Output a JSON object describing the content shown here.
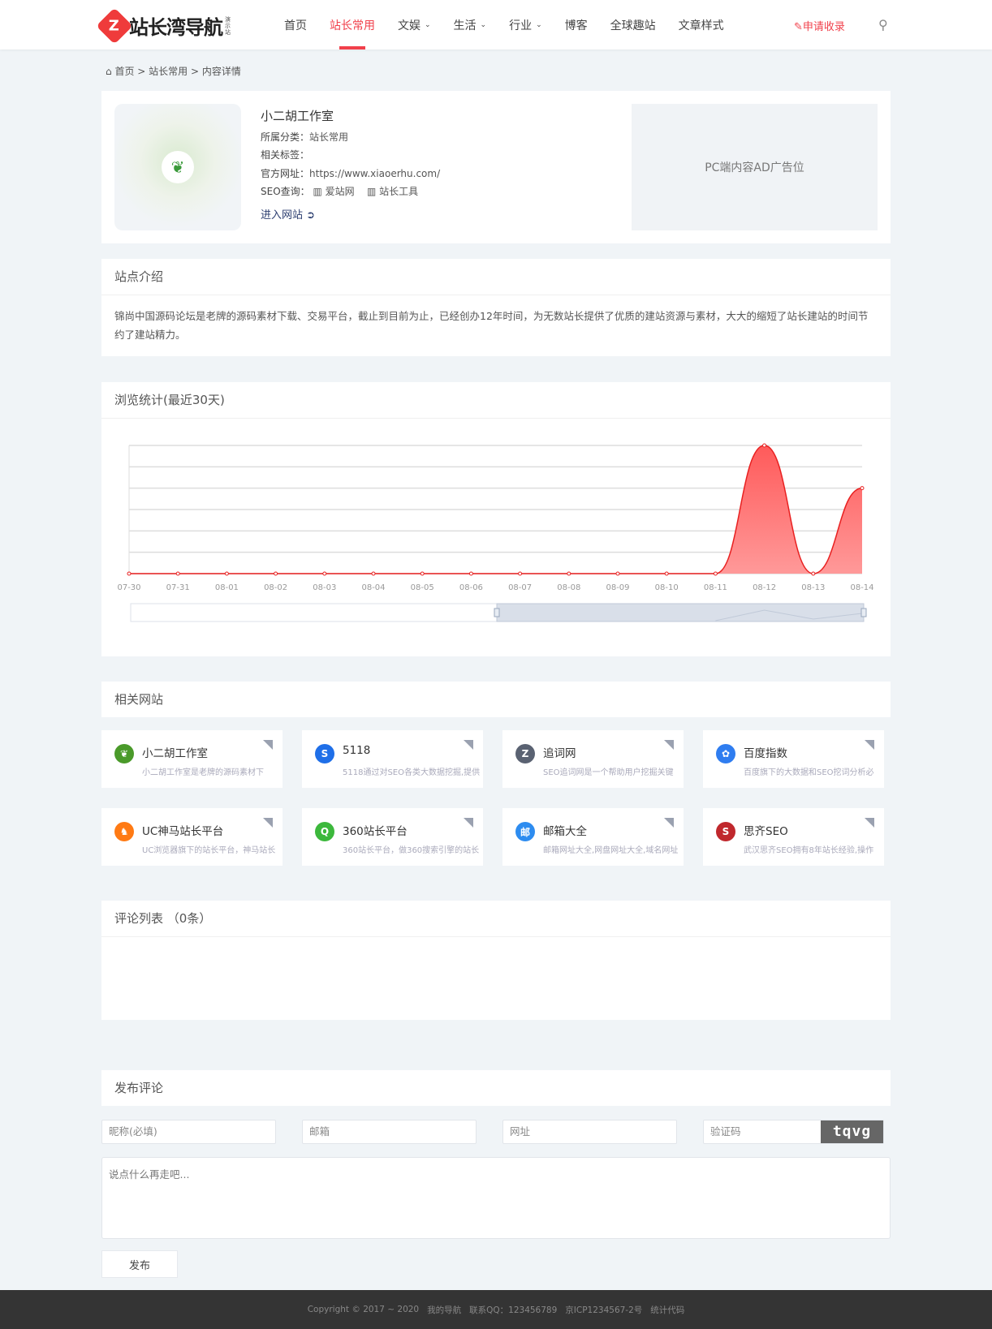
{
  "header": {
    "logo_text": "站长湾导航",
    "logo_badge": "演示站",
    "nav": [
      {
        "label": "首页"
      },
      {
        "label": "站长常用",
        "active": true
      },
      {
        "label": "文娱",
        "dropdown": true
      },
      {
        "label": "生活",
        "dropdown": true
      },
      {
        "label": "行业",
        "dropdown": true
      },
      {
        "label": "博客"
      },
      {
        "label": "全球趣站"
      },
      {
        "label": "文章样式"
      }
    ],
    "apply": "申请收录",
    "accent": "#f1404b"
  },
  "breadcrumb": [
    "首页",
    "站长常用",
    "内容详情"
  ],
  "site": {
    "name": "小二胡工作室",
    "category_label": "所属分类：",
    "category": "站长常用",
    "tags_label": "相关标签：",
    "url_label": "官方网址：",
    "url": "https://www.xiaoerhu.com/",
    "seo_label": "SEO查询：",
    "seo_links": [
      "爱站网",
      "站长工具"
    ],
    "enter": "进入网站",
    "ad": "PC端内容AD广告位"
  },
  "intro": {
    "title": "站点介绍",
    "text": "锦尚中国源码论坛是老牌的源码素材下载、交易平台，截止到目前为止，已经创办12年时间，为无数站长提供了优质的建站资源与素材，大大的缩短了站长建站的时间节约了建站精力。"
  },
  "stats": {
    "title": "浏览统计(最近30天)"
  },
  "chart_data": {
    "type": "area",
    "categories": [
      "07-30",
      "07-31",
      "08-01",
      "08-02",
      "08-03",
      "08-04",
      "08-05",
      "08-06",
      "08-07",
      "08-08",
      "08-09",
      "08-10",
      "08-11",
      "08-12",
      "08-13",
      "08-14"
    ],
    "values": [
      0,
      0,
      0,
      0,
      0,
      0,
      0,
      0,
      0,
      0,
      0,
      0,
      0,
      6,
      0,
      4
    ],
    "ylim": [
      0,
      6
    ],
    "grid": true,
    "color": "#ff5a5a",
    "smooth": true,
    "datazoom": true
  },
  "related": {
    "title": "相关网站",
    "items": [
      {
        "name": "小二胡工作室",
        "desc": "小二胡工作室是老牌的源码素材下",
        "icon": "tree-icon",
        "color": "#4a9a2a"
      },
      {
        "name": "5118",
        "desc": "5118通过对SEO各类大数据挖掘,提供",
        "icon": "s-icon",
        "color": "#1f6fe8"
      },
      {
        "name": "追词网",
        "desc": "SEO追词网是一个帮助用户挖掘关键",
        "icon": "z-icon",
        "color": "#5a6272"
      },
      {
        "name": "百度指数",
        "desc": "百度旗下的大数据和SEO挖词分析必",
        "icon": "paw-icon",
        "color": "#2f7df0"
      },
      {
        "name": "UC神马站长平台",
        "desc": "UC浏览器旗下的站长平台，神马站长",
        "icon": "horse-icon",
        "color": "#ff7a14"
      },
      {
        "name": "360站长平台",
        "desc": "360站长平台，做360搜索引擎的站长",
        "icon": "q-icon",
        "color": "#3cb83c"
      },
      {
        "name": "邮箱大全",
        "desc": "邮箱网址大全,网盘网址大全,域名网址",
        "icon": "mail-icon",
        "color": "#2d8cf0"
      },
      {
        "name": "思齐SEO",
        "desc": "武汉思齐SEO拥有8年站长经验,操作",
        "icon": "s-icon",
        "color": "#c0282d"
      }
    ]
  },
  "comments": {
    "title": "评论列表",
    "count": "（0条）"
  },
  "form": {
    "title": "发布评论",
    "nick": "昵称(必填)",
    "email": "邮箱",
    "site": "网址",
    "captcha": "验证码",
    "captcha_img": "tqvg",
    "content": "说点什么再走吧...",
    "submit": "发布"
  },
  "footer": [
    "Copyright © 2017 ~ 2020",
    "我的导航",
    "联系QQ：123456789",
    "京ICP1234567-2号",
    "统计代码"
  ]
}
